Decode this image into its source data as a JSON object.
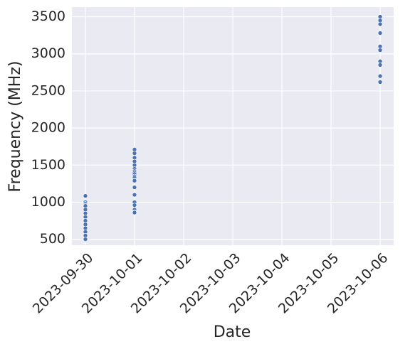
{
  "chart_data": {
    "type": "scatter",
    "x_label": "Date",
    "y_label": "Frequency (MHz)",
    "x": [
      "2023-09-30",
      "2023-09-30",
      "2023-09-30",
      "2023-09-30",
      "2023-09-30",
      "2023-09-30",
      "2023-09-30",
      "2023-09-30",
      "2023-09-30",
      "2023-09-30",
      "2023-09-30",
      "2023-09-30",
      "2023-09-30",
      "2023-09-30",
      "2023-10-01",
      "2023-10-01",
      "2023-10-01",
      "2023-10-01",
      "2023-10-01",
      "2023-10-01",
      "2023-10-01",
      "2023-10-01",
      "2023-10-01",
      "2023-10-01",
      "2023-10-01",
      "2023-10-01",
      "2023-10-01",
      "2023-10-01",
      "2023-10-01",
      "2023-10-01",
      "2023-10-01",
      "2023-10-01",
      "2023-10-01",
      "2023-10-01",
      "2023-10-06",
      "2023-10-06",
      "2023-10-06",
      "2023-10-06",
      "2023-10-06",
      "2023-10-06",
      "2023-10-06",
      "2023-10-06",
      "2023-10-06",
      "2023-10-06"
    ],
    "values": [
      1085,
      1000,
      980,
      960,
      950,
      900,
      850,
      800,
      750,
      700,
      650,
      600,
      550,
      500,
      1710,
      1660,
      1600,
      1550,
      1500,
      1450,
      1420,
      1400,
      1380,
      1350,
      1330,
      1300,
      1290,
      1200,
      1100,
      1000,
      960,
      900,
      870,
      860,
      3500,
      3450,
      3400,
      3280,
      3100,
      3050,
      2900,
      2850,
      2700,
      2620
    ],
    "color": "#4c72b0",
    "xlim": [
      "2023-09-29T17:24Z",
      "2023-10-06T06:36Z"
    ],
    "xticks": [
      "2023-09-30",
      "2023-10-01",
      "2023-10-02",
      "2023-10-03",
      "2023-10-04",
      "2023-10-05",
      "2023-10-06"
    ],
    "ylim": [
      420,
      3630
    ],
    "yticks": [
      500,
      1000,
      1500,
      2000,
      2500,
      3000,
      3500
    ],
    "grid": true
  }
}
